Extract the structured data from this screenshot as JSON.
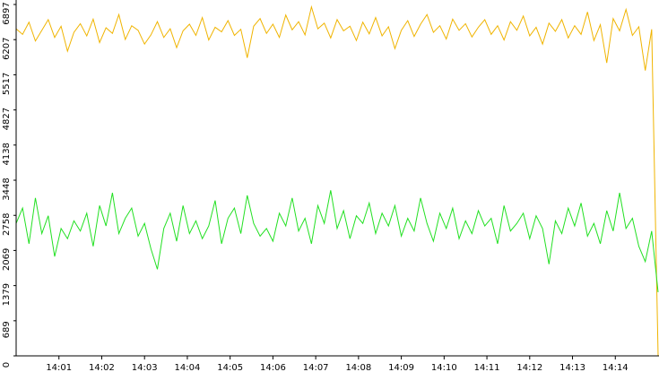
{
  "chart_data": {
    "type": "line",
    "x": [
      0,
      0.15,
      0.3,
      0.45,
      0.6,
      0.75,
      0.9,
      1.05,
      1.2,
      1.35,
      1.5,
      1.65,
      1.8,
      1.95,
      2.1,
      2.25,
      2.4,
      2.55,
      2.7,
      2.85,
      3,
      3.15,
      3.3,
      3.45,
      3.6,
      3.75,
      3.9,
      4.05,
      4.2,
      4.35,
      4.5,
      4.65,
      4.8,
      4.95,
      5.1,
      5.25,
      5.4,
      5.55,
      5.7,
      5.85,
      6,
      6.15,
      6.3,
      6.45,
      6.6,
      6.75,
      6.9,
      7.05,
      7.2,
      7.35,
      7.5,
      7.65,
      7.8,
      7.95,
      8.1,
      8.25,
      8.4,
      8.55,
      8.7,
      8.85,
      9,
      9.15,
      9.3,
      9.45,
      9.6,
      9.75,
      9.9,
      10.05,
      10.2,
      10.35,
      10.5,
      10.65,
      10.8,
      10.95,
      11.1,
      11.25,
      11.4,
      11.55,
      11.7,
      11.85,
      12,
      12.15,
      12.3,
      12.45,
      12.6,
      12.75,
      12.9,
      13.05,
      13.2,
      13.35,
      13.5,
      13.65,
      13.8,
      13.95,
      14.1,
      14.25,
      14.4,
      14.55,
      14.7,
      14.85,
      15
    ],
    "series": [
      {
        "color": "#f0b400",
        "values": [
          6420,
          6310,
          6550,
          6180,
          6390,
          6600,
          6250,
          6470,
          5980,
          6350,
          6520,
          6280,
          6610,
          6150,
          6440,
          6330,
          6700,
          6210,
          6480,
          6390,
          6120,
          6300,
          6560,
          6250,
          6420,
          6050,
          6380,
          6510,
          6290,
          6640,
          6200,
          6450,
          6360,
          6580,
          6290,
          6410,
          5850,
          6470,
          6620,
          6330,
          6510,
          6250,
          6690,
          6400,
          6560,
          6300,
          6850,
          6420,
          6530,
          6240,
          6600,
          6380,
          6470,
          6190,
          6550,
          6320,
          6640,
          6280,
          6460,
          6030,
          6390,
          6580,
          6270,
          6510,
          6700,
          6350,
          6480,
          6220,
          6610,
          6390,
          6520,
          6260,
          6450,
          6600,
          6310,
          6480,
          6200,
          6560,
          6390,
          6670,
          6280,
          6450,
          6120,
          6530,
          6370,
          6600,
          6240,
          6480,
          6310,
          6750,
          6190,
          6500,
          5750,
          6620,
          6380,
          6800,
          6290,
          6460,
          5600,
          6410,
          0
        ]
      },
      {
        "color": "#22e022",
        "values": [
          2600,
          2900,
          2200,
          3100,
          2400,
          2750,
          1950,
          2500,
          2300,
          2650,
          2450,
          2800,
          2150,
          2950,
          2550,
          3200,
          2400,
          2700,
          2900,
          2350,
          2600,
          2100,
          1700,
          2500,
          2800,
          2250,
          2950,
          2400,
          2650,
          2300,
          2550,
          3050,
          2200,
          2700,
          2900,
          2400,
          3150,
          2600,
          2350,
          2500,
          2250,
          2800,
          2550,
          3100,
          2450,
          2700,
          2200,
          2950,
          2600,
          3250,
          2500,
          2850,
          2300,
          2750,
          2600,
          3000,
          2400,
          2800,
          2550,
          2950,
          2350,
          2700,
          2450,
          3100,
          2600,
          2250,
          2800,
          2500,
          2900,
          2300,
          2650,
          2400,
          2850,
          2550,
          2700,
          2200,
          2950,
          2450,
          2600,
          2800,
          2300,
          2750,
          2500,
          1800,
          2650,
          2400,
          2900,
          2550,
          3000,
          2350,
          2600,
          2200,
          2850,
          2450,
          3200,
          2500,
          2700,
          2150,
          1850,
          2450,
          1250
        ]
      }
    ],
    "xlim": [
      0,
      15
    ],
    "xticks": [
      {
        "value": 1,
        "label": "14:01"
      },
      {
        "value": 2,
        "label": "14:02"
      },
      {
        "value": 3,
        "label": "14:03"
      },
      {
        "value": 4,
        "label": "14:04"
      },
      {
        "value": 5,
        "label": "14:05"
      },
      {
        "value": 6,
        "label": "14:06"
      },
      {
        "value": 7,
        "label": "14:07"
      },
      {
        "value": 8,
        "label": "14:08"
      },
      {
        "value": 9,
        "label": "14:09"
      },
      {
        "value": 10,
        "label": "14:10"
      },
      {
        "value": 11,
        "label": "14:11"
      },
      {
        "value": 12,
        "label": "14:12"
      },
      {
        "value": 13,
        "label": "14:13"
      },
      {
        "value": 14,
        "label": "14:14"
      }
    ],
    "ylim": [
      0,
      6897
    ],
    "yticks": [
      0,
      689,
      1379,
      2069,
      2758,
      3448,
      4138,
      4827,
      5517,
      6207,
      6897
    ]
  }
}
